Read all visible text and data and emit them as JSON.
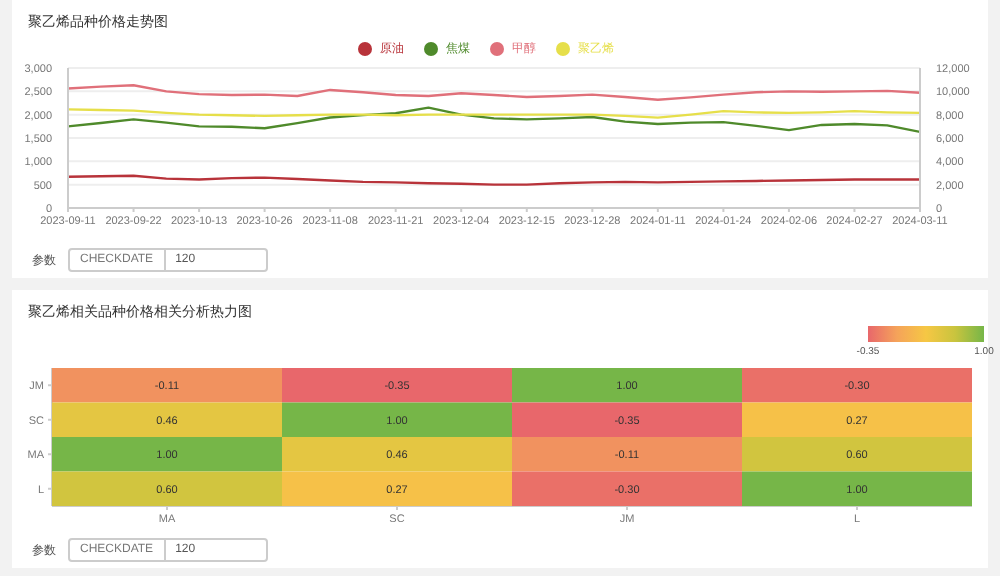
{
  "chart_data": [
    {
      "type": "line",
      "title": "聚乙烯品种价格走势图",
      "categories": [
        "2023-09-11",
        null,
        "2023-09-22",
        null,
        "2023-10-13",
        null,
        "2023-10-26",
        null,
        "2023-11-08",
        null,
        "2023-11-21",
        null,
        "2023-12-04",
        null,
        "2023-12-15",
        null,
        "2023-12-28",
        null,
        "2024-01-11",
        null,
        "2024-01-24",
        null,
        "2024-02-06",
        null,
        "2024-02-27",
        null,
        "2024-03-11"
      ],
      "series": [
        {
          "name": "原油",
          "color": "#b8333a",
          "values": [
            670,
            680,
            690,
            630,
            610,
            640,
            650,
            620,
            590,
            560,
            550,
            530,
            520,
            500,
            500,
            530,
            550,
            560,
            550,
            560,
            570,
            580,
            590,
            600,
            610,
            610,
            610
          ]
        },
        {
          "name": "焦煤",
          "color": "#4f8a2b",
          "values": [
            1750,
            1820,
            1900,
            1830,
            1750,
            1740,
            1710,
            1820,
            1940,
            1990,
            2030,
            2150,
            2000,
            1920,
            1900,
            1920,
            1950,
            1850,
            1800,
            1830,
            1840,
            1760,
            1670,
            1780,
            1800,
            1770,
            1630
          ]
        },
        {
          "name": "甲醇",
          "color": "#e0707a",
          "values": [
            2560,
            2600,
            2630,
            2500,
            2440,
            2420,
            2430,
            2400,
            2530,
            2480,
            2420,
            2400,
            2460,
            2420,
            2380,
            2400,
            2430,
            2380,
            2320,
            2370,
            2430,
            2480,
            2500,
            2490,
            2500,
            2510,
            2470
          ]
        },
        {
          "name": "聚乙烯",
          "color": "#e6df4a",
          "axis": "y2",
          "values": [
            8450,
            8400,
            8350,
            8150,
            8000,
            7950,
            7900,
            7950,
            8000,
            8000,
            7950,
            8000,
            8000,
            8000,
            8000,
            8000,
            8000,
            7900,
            7750,
            8000,
            8300,
            8200,
            8150,
            8200,
            8300,
            8200,
            8150
          ]
        }
      ],
      "ylim": [
        0,
        3000
      ],
      "yticks": [
        0,
        500,
        {
          "value": 1000,
          "label": "1,000"
        },
        {
          "value": 1500,
          "label": "1,500"
        },
        {
          "value": 2000,
          "label": "2,000"
        },
        {
          "value": 2500,
          "label": "2,500"
        },
        {
          "value": 3000,
          "label": "3,000"
        }
      ],
      "y2lim": [
        0,
        12000
      ],
      "y2ticks": [
        0,
        {
          "value": 2000,
          "label": "2,000"
        },
        {
          "value": 4000,
          "label": "4,000"
        },
        {
          "value": 6000,
          "label": "6,000"
        },
        {
          "value": 8000,
          "label": "8,000"
        },
        {
          "value": 10000,
          "label": "10,000"
        },
        {
          "value": 12000,
          "label": "12,000"
        }
      ],
      "grid": "y",
      "legend": "top",
      "annotations": [
        "参数",
        "CHECKDATE",
        "120"
      ]
    },
    {
      "type": "heatmap",
      "title": "聚乙烯相关品种价格相关分析热力图",
      "categories": [
        "MA",
        "SC",
        "JM",
        "L"
      ],
      "y_categories": [
        "JM",
        "SC",
        "MA",
        "L"
      ],
      "cells": [
        [
          -0.11,
          -0.35,
          1.0,
          -0.3
        ],
        [
          0.46,
          1.0,
          -0.35,
          0.27
        ],
        [
          1.0,
          0.46,
          -0.11,
          0.6
        ],
        [
          0.6,
          0.27,
          -0.3,
          1.0
        ]
      ],
      "cell_labels": [
        [
          "-0.11",
          "-0.35",
          "1.00",
          "-0.30"
        ],
        [
          "0.46",
          "1.00",
          "-0.35",
          "0.27"
        ],
        [
          "1.00",
          "0.46",
          "-0.11",
          "0.60"
        ],
        [
          "0.60",
          "0.27",
          "-0.30",
          "1.00"
        ]
      ],
      "clim": [
        -0.35,
        1.0
      ],
      "cticks": [
        {
          "value": -0.35,
          "label": "-0.35"
        },
        {
          "value": 1.0,
          "label": "1.00"
        }
      ],
      "annotations": [
        "参数",
        "CHECKDATE",
        "120"
      ]
    }
  ]
}
